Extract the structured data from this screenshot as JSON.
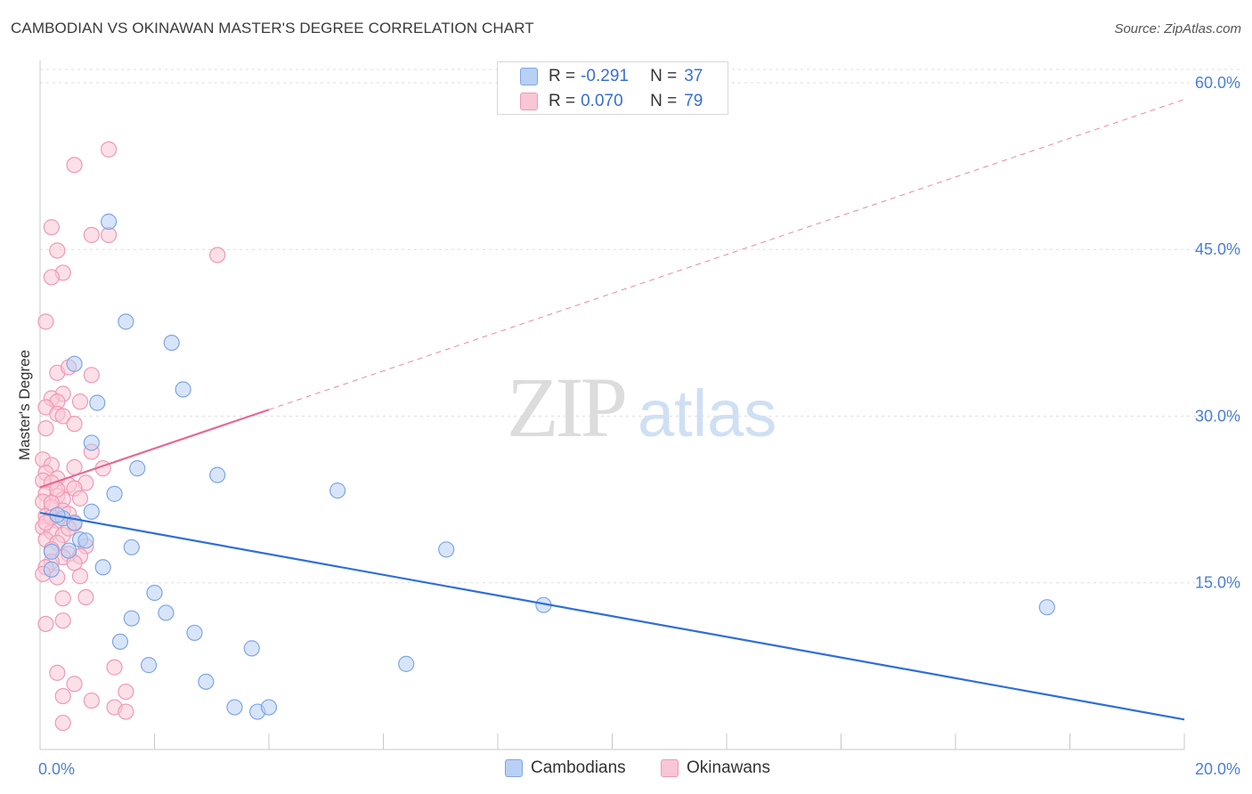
{
  "title": "CAMBODIAN VS OKINAWAN MASTER'S DEGREE CORRELATION CHART",
  "source": "Source: ZipAtlas.com",
  "watermark": {
    "zip": "ZIP",
    "atlas": "atlas"
  },
  "legend": {
    "r_label": "R =",
    "n_label": "N =",
    "items": [
      {
        "name": "Cambodians",
        "r": "-0.291",
        "n": "37",
        "fill": "#b8d0f4",
        "stroke": "#7ea6e6"
      },
      {
        "name": "Okinawans",
        "r": "0.070",
        "n": "79",
        "fill": "#f9c6d6",
        "stroke": "#ef99b6"
      }
    ]
  },
  "chart_data": {
    "type": "scatter",
    "title": "CAMBODIAN VS OKINAWAN MASTER'S DEGREE CORRELATION CHART",
    "xlabel": "",
    "ylabel": "Master's Degree",
    "xlim": [
      0,
      20
    ],
    "ylim": [
      0,
      62
    ],
    "x_tick_labels": [
      "0.0%",
      "20.0%"
    ],
    "y_ticks": [
      {
        "value": 15,
        "label": "15.0%"
      },
      {
        "value": 30,
        "label": "30.0%"
      },
      {
        "value": 45,
        "label": "45.0%"
      },
      {
        "value": 60,
        "label": "60.0%"
      }
    ],
    "grid": true,
    "series": [
      {
        "name": "Cambodians",
        "color": "#b8d0f4",
        "edge": "#7ea6e6",
        "trend_color": "#2f6fd6",
        "trend": {
          "x0": 0,
          "y0": 21.3,
          "x1": 20,
          "y1": 2.7,
          "dashed_from": null
        },
        "points": [
          [
            1.2,
            47.5
          ],
          [
            1.5,
            38.5
          ],
          [
            2.3,
            36.6
          ],
          [
            0.6,
            34.7
          ],
          [
            2.5,
            32.4
          ],
          [
            1.0,
            31.2
          ],
          [
            0.9,
            27.6
          ],
          [
            1.7,
            25.3
          ],
          [
            3.1,
            24.7
          ],
          [
            5.2,
            23.3
          ],
          [
            1.3,
            23.0
          ],
          [
            0.9,
            21.4
          ],
          [
            0.4,
            20.8
          ],
          [
            0.7,
            18.9
          ],
          [
            0.2,
            17.8
          ],
          [
            1.6,
            18.2
          ],
          [
            7.1,
            18.0
          ],
          [
            1.1,
            16.4
          ],
          [
            0.2,
            16.2
          ],
          [
            2.0,
            14.1
          ],
          [
            8.8,
            13.0
          ],
          [
            17.6,
            12.8
          ],
          [
            2.2,
            12.3
          ],
          [
            1.6,
            11.8
          ],
          [
            2.7,
            10.5
          ],
          [
            1.4,
            9.7
          ],
          [
            3.7,
            9.1
          ],
          [
            1.9,
            7.6
          ],
          [
            6.4,
            7.7
          ],
          [
            2.9,
            6.1
          ],
          [
            3.4,
            3.8
          ],
          [
            3.8,
            3.4
          ],
          [
            4.0,
            3.8
          ],
          [
            0.8,
            18.8
          ],
          [
            0.3,
            21.1
          ],
          [
            0.6,
            20.4
          ],
          [
            0.5,
            17.9
          ]
        ]
      },
      {
        "name": "Okinawans",
        "color": "#f9c6d6",
        "edge": "#ef99b6",
        "trend_color": "#e46a92",
        "trend": {
          "x0": 0,
          "y0": 23.6,
          "x1": 20,
          "y1": 58.5,
          "solid_until": 4.0
        },
        "points": [
          [
            1.2,
            54.0
          ],
          [
            0.6,
            52.6
          ],
          [
            0.2,
            47.0
          ],
          [
            0.9,
            46.3
          ],
          [
            1.2,
            46.3
          ],
          [
            0.3,
            44.9
          ],
          [
            3.1,
            44.5
          ],
          [
            0.4,
            42.9
          ],
          [
            0.2,
            42.5
          ],
          [
            0.1,
            38.5
          ],
          [
            0.3,
            33.9
          ],
          [
            0.9,
            33.7
          ],
          [
            0.5,
            34.4
          ],
          [
            0.4,
            32.0
          ],
          [
            0.2,
            31.6
          ],
          [
            0.3,
            31.3
          ],
          [
            0.7,
            31.3
          ],
          [
            0.1,
            30.8
          ],
          [
            0.3,
            30.2
          ],
          [
            0.4,
            30.0
          ],
          [
            0.6,
            29.3
          ],
          [
            0.1,
            28.9
          ],
          [
            0.9,
            26.8
          ],
          [
            0.05,
            26.1
          ],
          [
            0.2,
            25.6
          ],
          [
            0.6,
            25.4
          ],
          [
            1.1,
            25.3
          ],
          [
            0.1,
            24.9
          ],
          [
            0.3,
            24.4
          ],
          [
            0.05,
            24.2
          ],
          [
            0.2,
            24.0
          ],
          [
            0.5,
            23.8
          ],
          [
            0.8,
            24.0
          ],
          [
            0.6,
            23.5
          ],
          [
            0.1,
            23.0
          ],
          [
            0.3,
            22.8
          ],
          [
            0.4,
            22.5
          ],
          [
            0.7,
            22.6
          ],
          [
            0.05,
            22.3
          ],
          [
            0.2,
            21.8
          ],
          [
            0.4,
            21.5
          ],
          [
            0.1,
            21.0
          ],
          [
            0.3,
            20.6
          ],
          [
            0.6,
            20.3
          ],
          [
            0.05,
            20.0
          ],
          [
            0.2,
            19.6
          ],
          [
            0.4,
            19.3
          ],
          [
            0.1,
            18.9
          ],
          [
            0.3,
            18.6
          ],
          [
            0.8,
            18.3
          ],
          [
            0.2,
            18.0
          ],
          [
            0.5,
            17.6
          ],
          [
            0.4,
            17.3
          ],
          [
            0.7,
            17.4
          ],
          [
            0.2,
            16.9
          ],
          [
            0.1,
            16.4
          ],
          [
            0.05,
            15.8
          ],
          [
            0.3,
            15.5
          ],
          [
            0.7,
            15.6
          ],
          [
            0.4,
            13.6
          ],
          [
            0.8,
            13.7
          ],
          [
            0.4,
            11.6
          ],
          [
            0.1,
            11.3
          ],
          [
            1.3,
            7.4
          ],
          [
            0.3,
            6.9
          ],
          [
            0.6,
            5.9
          ],
          [
            1.5,
            5.2
          ],
          [
            0.4,
            4.8
          ],
          [
            0.9,
            4.4
          ],
          [
            1.3,
            3.8
          ],
          [
            1.5,
            3.4
          ],
          [
            0.4,
            2.4
          ],
          [
            0.2,
            20.9
          ],
          [
            0.5,
            21.2
          ],
          [
            0.6,
            16.8
          ],
          [
            0.3,
            23.4
          ],
          [
            0.1,
            20.4
          ],
          [
            0.5,
            19.9
          ],
          [
            0.2,
            22.2
          ]
        ]
      }
    ]
  }
}
